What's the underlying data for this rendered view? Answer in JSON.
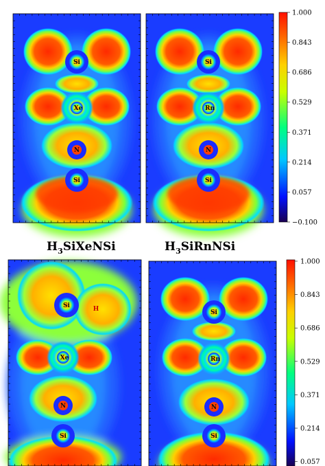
{
  "panels": [
    {
      "id": "top-left",
      "atoms": [
        "Si",
        "Xe",
        "N",
        "Si"
      ],
      "extra": ""
    },
    {
      "id": "top-right",
      "atoms": [
        "Si",
        "Rn",
        "N",
        "Si"
      ],
      "extra": ""
    },
    {
      "id": "bottom-left",
      "atoms": [
        "Si",
        "Xe",
        "N",
        "Si"
      ],
      "extra": "H"
    },
    {
      "id": "bottom-right",
      "atoms": [
        "Si",
        "Rn",
        "N",
        "Si"
      ],
      "extra": ""
    }
  ],
  "labels": {
    "left": {
      "pre": "H",
      "sub": "3",
      "post": "SiXeNSi"
    },
    "right": {
      "pre": "H",
      "sub": "3",
      "post": "SiRnNSi"
    }
  },
  "colorbar_ticks": [
    "1.000",
    "0.843",
    "0.686",
    "0.529",
    "0.371",
    "0.214",
    "0.057",
    "−0.100"
  ],
  "colorbar_ticks_bottom": [
    "1.000",
    "0.843",
    "0.686",
    "0.529",
    "0.371",
    "0.214",
    "0.057"
  ],
  "colors": {
    "background": "#1a3cff",
    "high": "#ff3300",
    "mid": "#ffd000",
    "low": "#2b8cff"
  }
}
